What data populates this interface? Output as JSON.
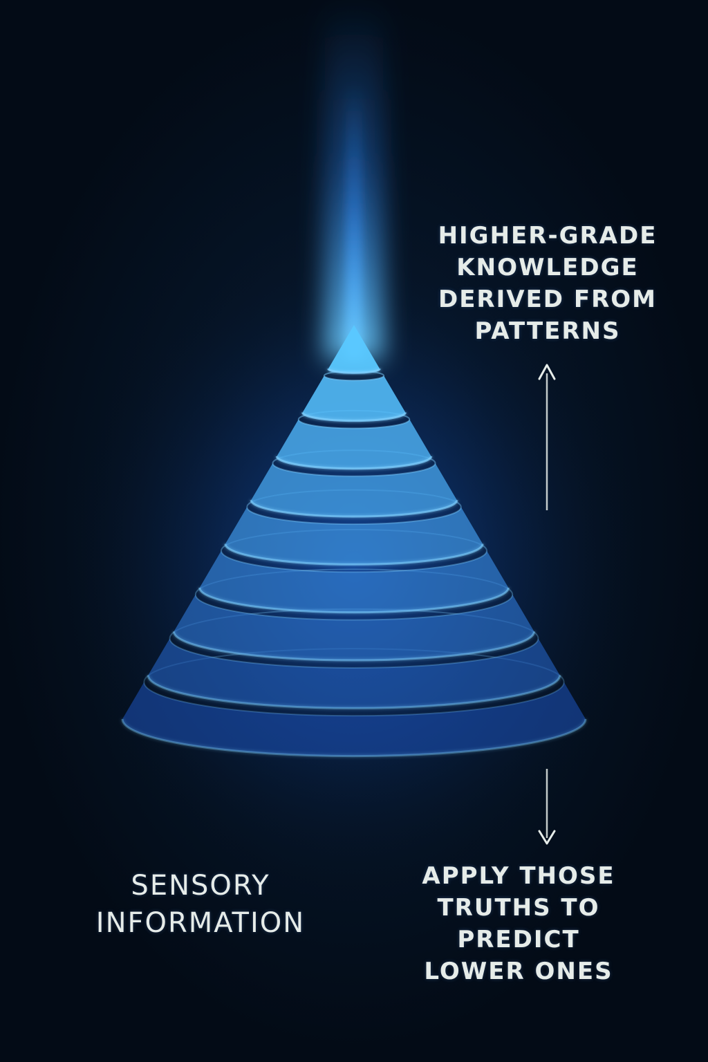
{
  "labels": {
    "top": "HIGHER-GRADE\nKNOWLEDGE\nDERIVED FROM\nPATTERNS",
    "left": "SENSORY\nINFORMATION",
    "bottom": "APPLY THOSE\nTRUTHS TO PREDICT\nLOWER ONES"
  },
  "colors": {
    "background": "#04101d",
    "glow": "#2f8dff",
    "tier_top": "#5ac8ff",
    "tier_bottom": "#1a4fb0",
    "ring": "#7fd0ff",
    "arrow": "#e6ece9",
    "text": "#e6ece9"
  },
  "pyramid": {
    "tier_count": 9,
    "arrow_up_icon": "arrow-up-icon",
    "arrow_down_icon": "arrow-down-icon"
  }
}
